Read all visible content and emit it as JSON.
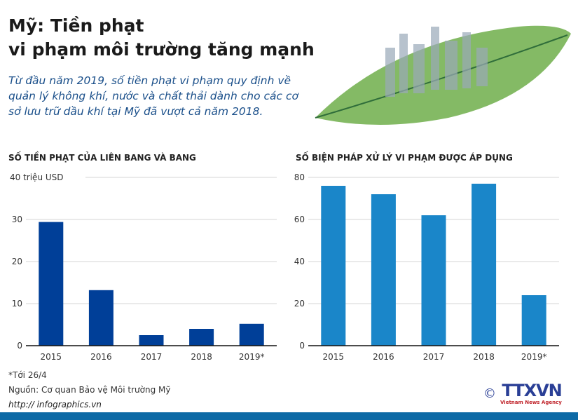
{
  "header": {
    "title_line1": "Mỹ: Tiền phạt",
    "title_line2": "vi phạm môi trường tăng mạnh",
    "subtitle": "Từ đầu năm 2019, số tiền phạt vi phạm quy định về quản lý không khí, nước và chất thải dành cho các cơ sở lưu trữ dầu khí tại Mỹ đã vượt cả năm 2018."
  },
  "chart_data": [
    {
      "type": "bar",
      "title": "SỐ TIỀN PHẠT CỦA LIÊN BANG VÀ BANG",
      "ylabel": "40 triệu USD",
      "categories": [
        "2015",
        "2016",
        "2017",
        "2018",
        "2019*"
      ],
      "values": [
        29.4,
        13.2,
        2.5,
        4.0,
        5.2
      ],
      "yticks": [
        "0",
        "10",
        "20",
        "30",
        "40 triệu USD"
      ],
      "ylim": [
        0,
        40
      ],
      "grid": true,
      "color": "#003f98"
    },
    {
      "type": "bar",
      "title": "SỐ BIỆN PHÁP XỬ LÝ VI PHẠM ĐƯỢC ÁP DỤNG",
      "categories": [
        "2015",
        "2016",
        "2017",
        "2018",
        "2019*"
      ],
      "values": [
        76,
        72,
        62,
        77,
        24
      ],
      "yticks": [
        "0",
        "20",
        "40",
        "60",
        "80"
      ],
      "ylim": [
        0,
        80
      ],
      "grid": true,
      "color": "#1a86c9"
    }
  ],
  "notes": {
    "footnote": "*Tới 26/4",
    "source": "Nguồn: Cơ quan Bảo vệ Môi trường Mỹ"
  },
  "footer": {
    "url": "http:// infographics.vn",
    "logo": "TTXVN",
    "logo_sub": "Vietnam News Agency",
    "copyright": "©"
  }
}
